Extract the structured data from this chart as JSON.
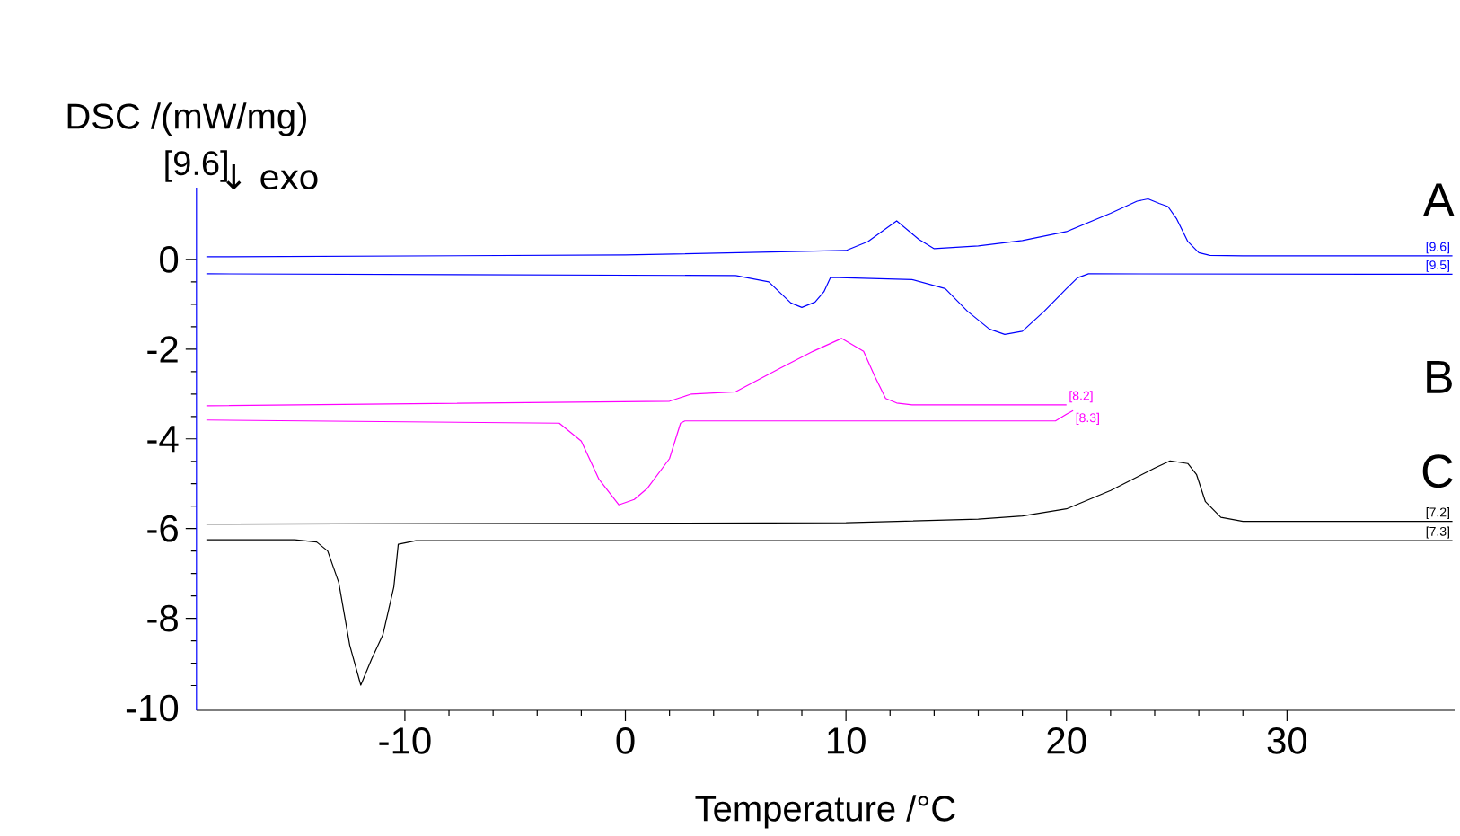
{
  "chart_data": {
    "type": "line",
    "xlabel": "Temperature /°C",
    "ylabel": "DSC /(mW/mg)",
    "xlim": [
      -19.45,
      37.6
    ],
    "ylim": [
      -10.05,
      1.6
    ],
    "xticks": [
      -10,
      0,
      10,
      20,
      30
    ],
    "yticks": [
      -10,
      -8,
      -6,
      -4,
      -2,
      0
    ],
    "legend": false,
    "grid": false,
    "marker": "none",
    "line_style": "solid",
    "annotations": [
      "[9.6]",
      "↓ exo",
      "A",
      "B",
      "C"
    ],
    "series": [
      {
        "name": "[9.6]",
        "color": "#0000ff",
        "x": [
          -19,
          0,
          10,
          11,
          12.3,
          13.3,
          14,
          16,
          18,
          20,
          22,
          23.2,
          23.7,
          24.2,
          24.6,
          25,
          25.5,
          26,
          26.5,
          28,
          37.5
        ],
        "values": [
          0.06,
          0.1,
          0.2,
          0.4,
          0.86,
          0.45,
          0.24,
          0.3,
          0.42,
          0.62,
          1.03,
          1.3,
          1.35,
          1.25,
          1.18,
          0.9,
          0.4,
          0.15,
          0.09,
          0.08,
          0.08
        ]
      },
      {
        "name": "[9.5]",
        "color": "#0000ff",
        "x": [
          -19,
          5,
          6.5,
          7.5,
          8,
          8.6,
          9,
          9.3,
          13,
          14.5,
          15.5,
          16.5,
          17.2,
          18,
          19,
          20,
          20.5,
          21,
          37.5
        ],
        "values": [
          -0.32,
          -0.36,
          -0.5,
          -0.97,
          -1.07,
          -0.95,
          -0.72,
          -0.4,
          -0.45,
          -0.65,
          -1.15,
          -1.55,
          -1.67,
          -1.6,
          -1.15,
          -0.65,
          -0.41,
          -0.32,
          -0.33
        ]
      },
      {
        "name": "[8.2]",
        "color": "#ff00ff",
        "x": [
          -19,
          2,
          2.5,
          3,
          5,
          7,
          8.5,
          9.8,
          10.8,
          11.3,
          11.8,
          12.3,
          13,
          20
        ],
        "values": [
          -3.26,
          -3.16,
          -3.08,
          -3.0,
          -2.95,
          -2.43,
          -2.05,
          -1.76,
          -2.05,
          -2.6,
          -3.1,
          -3.2,
          -3.24,
          -3.24
        ]
      },
      {
        "name": "[8.3]",
        "color": "#ff00ff",
        "x": [
          -19,
          -3,
          -2,
          -1.2,
          -0.3,
          0.4,
          1,
          2,
          2.5,
          2.7,
          19.5,
          20,
          20.3
        ],
        "values": [
          -3.58,
          -3.65,
          -4.05,
          -4.9,
          -5.47,
          -5.35,
          -5.1,
          -4.44,
          -3.65,
          -3.6,
          -3.6,
          -3.45,
          -3.37
        ]
      },
      {
        "name": "[7.2]",
        "color": "#000000",
        "x": [
          -19,
          10,
          16,
          18,
          20,
          22,
          24,
          24.7,
          25.5,
          25.9,
          26.3,
          27,
          28,
          37.5
        ],
        "values": [
          -5.9,
          -5.87,
          -5.79,
          -5.72,
          -5.56,
          -5.15,
          -4.65,
          -4.49,
          -4.55,
          -4.8,
          -5.4,
          -5.75,
          -5.84,
          -5.84
        ]
      },
      {
        "name": "[7.3]",
        "color": "#000000",
        "x": [
          -19,
          -15,
          -14,
          -13.5,
          -13,
          -12.5,
          -12,
          -11.5,
          -11,
          -10.5,
          -10.3,
          -9.5,
          37.5
        ],
        "values": [
          -6.25,
          -6.25,
          -6.3,
          -6.5,
          -7.2,
          -8.6,
          -9.49,
          -8.9,
          -8.37,
          -7.3,
          -6.35,
          -6.27,
          -6.27
        ]
      }
    ]
  }
}
